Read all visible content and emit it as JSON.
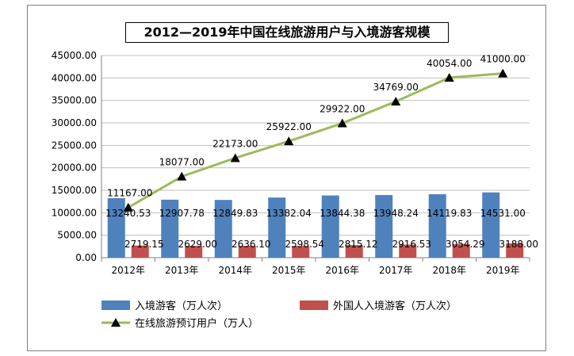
{
  "chart_data": {
    "type": "bar",
    "title": "2012—2019年中国在线旅游用户与入境游客规模",
    "categories": [
      "2012年",
      "2013年",
      "2014年",
      "2015年",
      "2016年",
      "2017年",
      "2018年",
      "2019年"
    ],
    "ylim": [
      0,
      45000
    ],
    "yticks": [
      "0.00",
      "5000.00",
      "10000.00",
      "15000.00",
      "20000.00",
      "25000.00",
      "30000.00",
      "35000.00",
      "40000.00",
      "45000.00"
    ],
    "grid": true,
    "legend_position": "bottom",
    "series": [
      {
        "name": "入境游客（万人次）",
        "type": "bar",
        "color": "#4f81bd",
        "values": [
          13240.53,
          12907.78,
          12849.83,
          13382.04,
          13844.38,
          13948.24,
          14119.83,
          14531.0
        ],
        "labels": [
          "13240.53",
          "12907.78",
          "12849.83",
          "13382.04",
          "13844.38",
          "13948.24",
          "14119.83",
          "14531.00"
        ]
      },
      {
        "name": "外国人入境游客（万人次）",
        "type": "bar",
        "color": "#c0504d",
        "values": [
          2719.15,
          2629.0,
          2636.1,
          2598.54,
          2815.12,
          2916.53,
          3054.29,
          3188.0
        ],
        "labels": [
          "2719.15",
          "2629.00",
          "2636.10",
          "2598.54",
          "2815.12",
          "2916.53",
          "3054.29",
          "3188.00"
        ]
      },
      {
        "name": "在线旅游预订用户（万人）",
        "type": "line",
        "color": "#9bbb59",
        "values": [
          11167.0,
          18077.0,
          22173.0,
          25922.0,
          29922.0,
          34769.0,
          40054.0,
          41000.0
        ],
        "labels": [
          "11167.00",
          "18077.00",
          "22173.00",
          "25922.00",
          "29922.00",
          "34769.00",
          "40054.00",
          "41000.00"
        ]
      }
    ]
  }
}
